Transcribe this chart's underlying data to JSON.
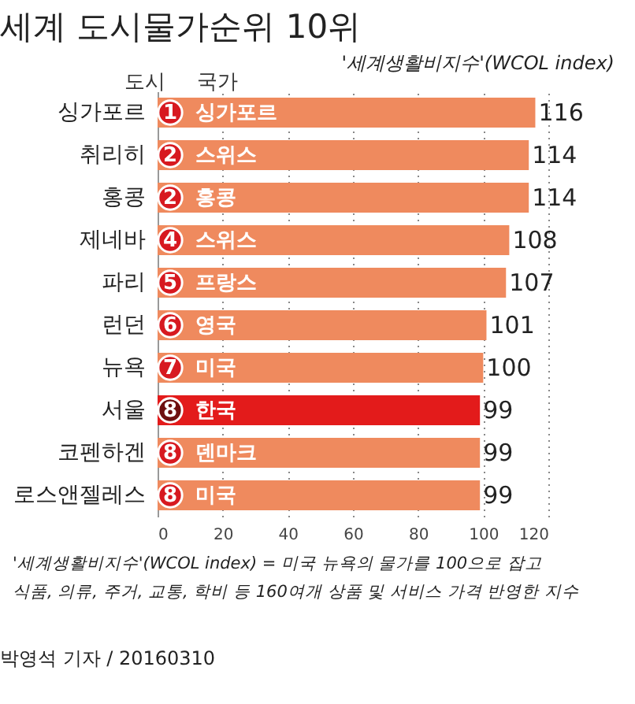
{
  "chart_data": {
    "type": "bar",
    "orientation": "horizontal",
    "title": "세계 도시물가순위 10위",
    "xlabel": "'세계생활비지수'(WCOL index)",
    "categories": [
      "싱가포르",
      "취리히",
      "홍콩",
      "제네바",
      "파리",
      "런던",
      "뉴욕",
      "서울",
      "코펜하겐",
      "로스앤젤레스"
    ],
    "values": [
      116,
      114,
      114,
      108,
      107,
      101,
      100,
      99,
      99,
      99
    ],
    "colors": [
      "#ef8a5e",
      "#ef8a5e",
      "#ef8a5e",
      "#ef8a5e",
      "#ef8a5e",
      "#ef8a5e",
      "#ef8a5e",
      "#e31b1b",
      "#ef8a5e",
      "#ef8a5e"
    ],
    "xlim": [
      0,
      120
    ],
    "xticks": [
      0,
      20,
      40,
      60,
      80,
      100,
      120
    ],
    "grid": "x",
    "data_labels": true,
    "annotations": [
      "도시",
      "국가",
      {
        "text": "1",
        "y": "싱가포르"
      },
      {
        "text": "싱가포르",
        "y": "싱가포르"
      },
      {
        "text": "2",
        "y": "취리히"
      },
      {
        "text": "스위스",
        "y": "취리히"
      },
      {
        "text": "2",
        "y": "홍콩"
      },
      {
        "text": "홍콩",
        "y": "홍콩"
      },
      {
        "text": "4",
        "y": "제네바"
      },
      {
        "text": "스위스",
        "y": "제네바"
      },
      {
        "text": "5",
        "y": "파리"
      },
      {
        "text": "프랑스",
        "y": "파리"
      },
      {
        "text": "6",
        "y": "런던"
      },
      {
        "text": "영국",
        "y": "런던"
      },
      {
        "text": "7",
        "y": "뉴욕"
      },
      {
        "text": "미국",
        "y": "뉴욕"
      },
      {
        "text": "8",
        "y": "서울"
      },
      {
        "text": "한국",
        "y": "서울"
      },
      {
        "text": "8",
        "y": "코펜하겐"
      },
      {
        "text": "덴마크",
        "y": "코펜하겐"
      },
      {
        "text": "8",
        "y": "로스앤젤레스"
      },
      {
        "text": "미국",
        "y": "로스앤젤레스"
      },
      "'세계생활비지수'(WCOL index) = 미국 뉴욕의 물가를 100으로 잡고",
      "식품, 의류, 주거, 교통, 학비 등 160여개 상품 및 서비스 가격 반영한 지수",
      "박영석 기자 / 20160310"
    ]
  }
}
